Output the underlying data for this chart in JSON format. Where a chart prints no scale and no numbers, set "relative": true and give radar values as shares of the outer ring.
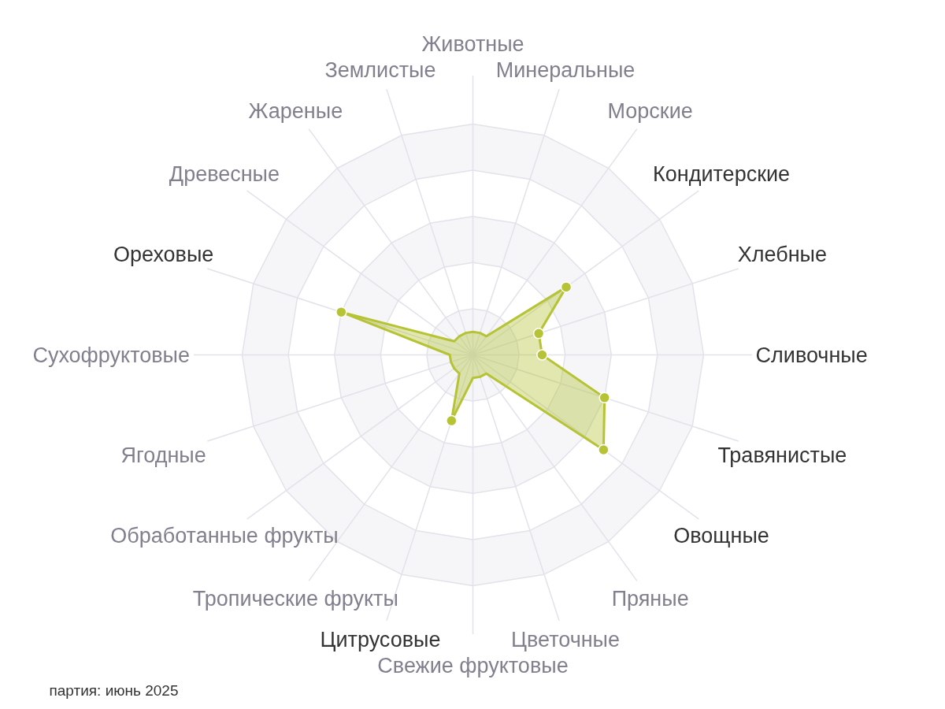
{
  "chart_data": {
    "type": "radar",
    "categories": [
      "Животные",
      "Минеральные",
      "Морские",
      "Кондитерские",
      "Хлебные",
      "Сливочные",
      "Травянистые",
      "Овощные",
      "Пряные",
      "Цветочные",
      "Свежие фруктовые",
      "Цитрусовые",
      "Тропические фрукты",
      "Обработанные фрукты",
      "Ягодные",
      "Сухофруктовые",
      "Ореховые",
      "Древесные",
      "Жареные",
      "Землистые"
    ],
    "relative": true,
    "series": [
      {
        "color": "#b5c334",
        "values": [
          0.1,
          0.1,
          0.1,
          0.5,
          0.3,
          0.3,
          0.6,
          0.7,
          0.1,
          0.1,
          0.1,
          0.3,
          0.1,
          0.1,
          0.1,
          0.1,
          0.6,
          0.1,
          0.1,
          0.1
        ]
      }
    ],
    "marker": "circle",
    "grid": true,
    "annotations": [
      "партия: июнь 2025"
    ]
  }
}
